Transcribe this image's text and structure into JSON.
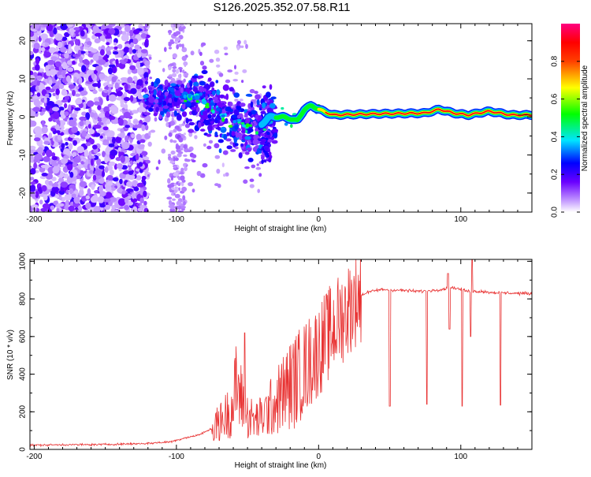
{
  "title": "S126.2025.352.07.58.R11",
  "chart_data": [
    {
      "type": "heatmap",
      "name": "spectrogram",
      "xlabel": "Height of straight line (km)",
      "ylabel": "Frequency (Hz)",
      "xlim": [
        -203,
        150
      ],
      "ylim": [
        -25,
        24.5
      ],
      "xticks": [
        -200,
        -100,
        0,
        100
      ],
      "yticks": [
        -20,
        -10,
        0,
        10,
        20
      ],
      "colorbar": {
        "label": "Normalized spectral amplitude",
        "range": [
          0,
          1
        ],
        "ticks": [
          0.0,
          0.2,
          0.4,
          0.6,
          0.8
        ],
        "tick_labels": [
          "0.0",
          "0.2",
          "0.4",
          "0.6",
          "0.8"
        ]
      },
      "carrier_track": [
        {
          "x": -120,
          "y": 4.5
        },
        {
          "x": -110,
          "y": 4
        },
        {
          "x": -100,
          "y": 5
        },
        {
          "x": -85,
          "y": 5
        },
        {
          "x": -75,
          "y": 2
        },
        {
          "x": -65,
          "y": 0
        },
        {
          "x": -55,
          "y": -2
        },
        {
          "x": -45,
          "y": -4
        },
        {
          "x": -40,
          "y": -2
        },
        {
          "x": -35,
          "y": 0
        },
        {
          "x": -25,
          "y": 0
        },
        {
          "x": -15,
          "y": -1
        },
        {
          "x": -10,
          "y": 2
        },
        {
          "x": -5,
          "y": 3
        },
        {
          "x": 0,
          "y": 2
        },
        {
          "x": 10,
          "y": 0.5
        },
        {
          "x": 40,
          "y": 0.8
        },
        {
          "x": 75,
          "y": 1
        },
        {
          "x": 85,
          "y": 2
        },
        {
          "x": 95,
          "y": 1
        },
        {
          "x": 105,
          "y": 0.5
        },
        {
          "x": 120,
          "y": 1.5
        },
        {
          "x": 135,
          "y": 0.5
        },
        {
          "x": 150,
          "y": 0.5
        }
      ]
    },
    {
      "type": "line",
      "name": "snr",
      "xlabel": "Height of straight line (km)",
      "ylabel": "SNR (10 * v/v)",
      "xlim": [
        -203,
        150
      ],
      "ylim": [
        0,
        1010
      ],
      "xticks": [
        -200,
        -100,
        0,
        100
      ],
      "yticks": [
        0,
        200,
        400,
        600,
        800,
        1000
      ],
      "color": "#e83232",
      "series": [
        {
          "name": "SNR",
          "x": [
            -203,
            -180,
            -160,
            -140,
            -120,
            -105,
            -100,
            -95,
            -85,
            -75,
            -70,
            -65,
            -60,
            -58,
            -55,
            -50,
            -45,
            -40,
            -35,
            -30,
            -25,
            -20,
            -15,
            -10,
            -5,
            0,
            5,
            10,
            15,
            20,
            25,
            30,
            35,
            40,
            45,
            50,
            60,
            70,
            80,
            90,
            95,
            100,
            105,
            110,
            115,
            120,
            130,
            140,
            150
          ],
          "values": [
            22,
            25,
            25,
            28,
            32,
            40,
            48,
            60,
            75,
            110,
            140,
            180,
            230,
            350,
            280,
            180,
            150,
            170,
            210,
            250,
            300,
            340,
            380,
            430,
            480,
            530,
            590,
            640,
            690,
            740,
            790,
            820,
            835,
            845,
            850,
            848,
            845,
            840,
            845,
            855,
            860,
            850,
            840,
            840,
            840,
            835,
            832,
            830,
            828
          ]
        }
      ],
      "dips": [
        {
          "x": -52,
          "value": 620
        },
        {
          "x": 50,
          "value": 230
        },
        {
          "x": 76,
          "value": 240
        },
        {
          "x": 92,
          "value": 640
        },
        {
          "x": 101,
          "value": 230
        },
        {
          "x": 107,
          "value": 600
        },
        {
          "x": 128,
          "value": 235
        }
      ],
      "spikes": [
        {
          "x": 91,
          "value": 935
        },
        {
          "x": 108,
          "value": 1010
        }
      ]
    }
  ]
}
